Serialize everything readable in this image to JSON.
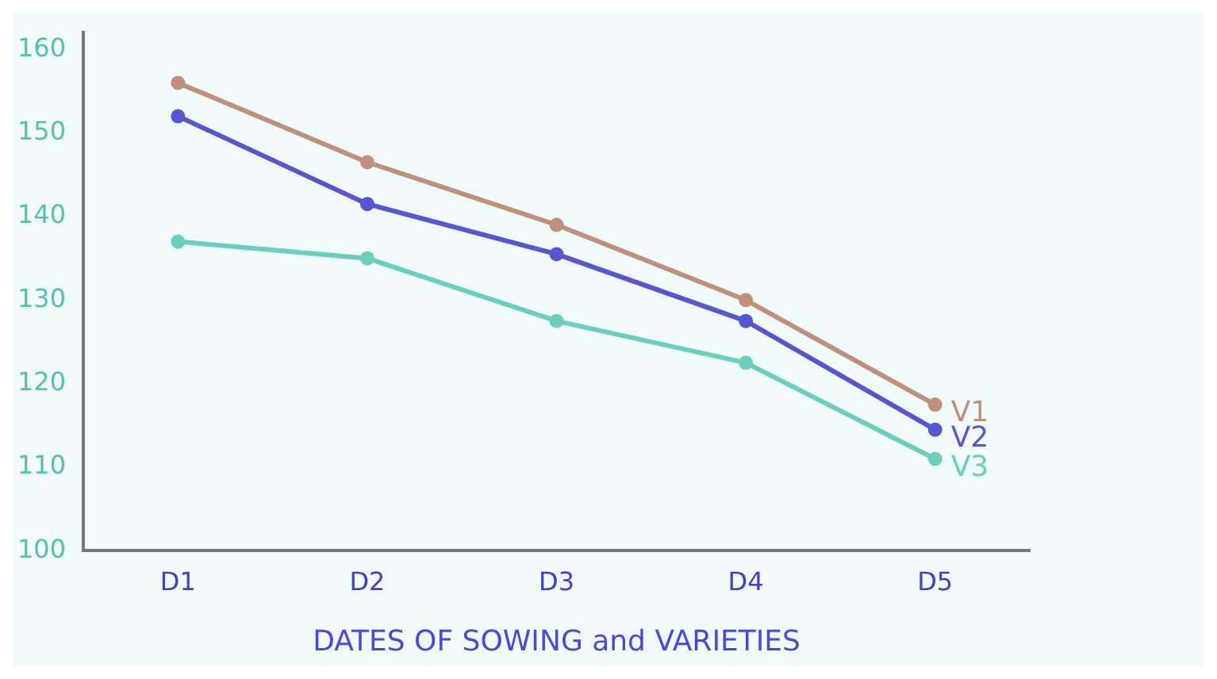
{
  "chart_data": {
    "type": "line",
    "xlabel": "DATES OF SOWING and VARIETIES",
    "categories": [
      "D1",
      "D2",
      "D3",
      "D4",
      "D5"
    ],
    "series": [
      {
        "name": "V1",
        "color": "#c0907e",
        "values": [
          156,
          146.5,
          139,
          130,
          117.5
        ]
      },
      {
        "name": "V2",
        "color": "#5656d0",
        "values": [
          152,
          141.5,
          135.5,
          127.5,
          114.5
        ]
      },
      {
        "name": "V3",
        "color": "#6ccfbd",
        "values": [
          137,
          135,
          127.5,
          122.5,
          111
        ]
      }
    ],
    "ylim": [
      100,
      162
    ],
    "yticks": [
      100,
      110,
      120,
      130,
      140,
      150,
      160
    ],
    "grid": false,
    "legend": false,
    "marker": "circle"
  }
}
